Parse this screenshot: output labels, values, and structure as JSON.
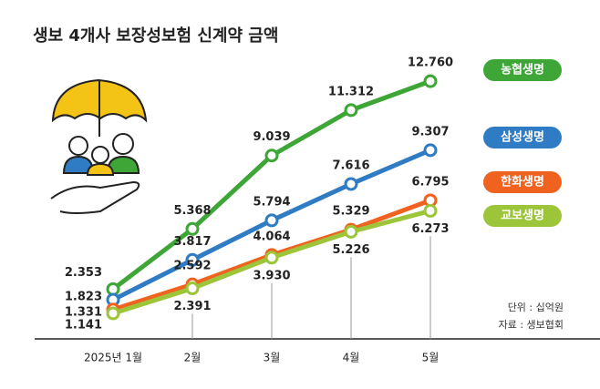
{
  "chart_data": {
    "type": "line",
    "title": "생보 4개사 보장성보험 신계약 금액",
    "categories": [
      "2025년 1월",
      "2월",
      "3월",
      "4월",
      "5월"
    ],
    "ylim": [
      0,
      15
    ],
    "series": [
      {
        "name": "농협생명",
        "color": "#3da637",
        "values": [
          2.353,
          5.368,
          9.039,
          11.312,
          12.76
        ],
        "value_labels": [
          "2.353",
          "5.368",
          "9.039",
          "11.312",
          "12.760"
        ]
      },
      {
        "name": "삼성생명",
        "color": "#2f7cc4",
        "values": [
          1.823,
          3.817,
          5.794,
          7.616,
          9.307
        ],
        "value_labels": [
          "1.823",
          "3.817",
          "5.794",
          "7.616",
          "9.307"
        ]
      },
      {
        "name": "한화생명",
        "color": "#f0621f",
        "values": [
          1.331,
          2.592,
          4.064,
          5.329,
          6.795
        ],
        "value_labels": [
          "1.331",
          "2.592",
          "4.064",
          "5.329",
          "6.795"
        ]
      },
      {
        "name": "교보생명",
        "color": "#9cc53a",
        "values": [
          1.141,
          2.391,
          3.93,
          5.226,
          6.273
        ],
        "value_labels": [
          "1.141",
          "2.391",
          "3.930",
          "5.226",
          "6.273"
        ]
      }
    ],
    "notes": [
      "단위 : 십억원",
      "자료 : 생보협회"
    ]
  }
}
